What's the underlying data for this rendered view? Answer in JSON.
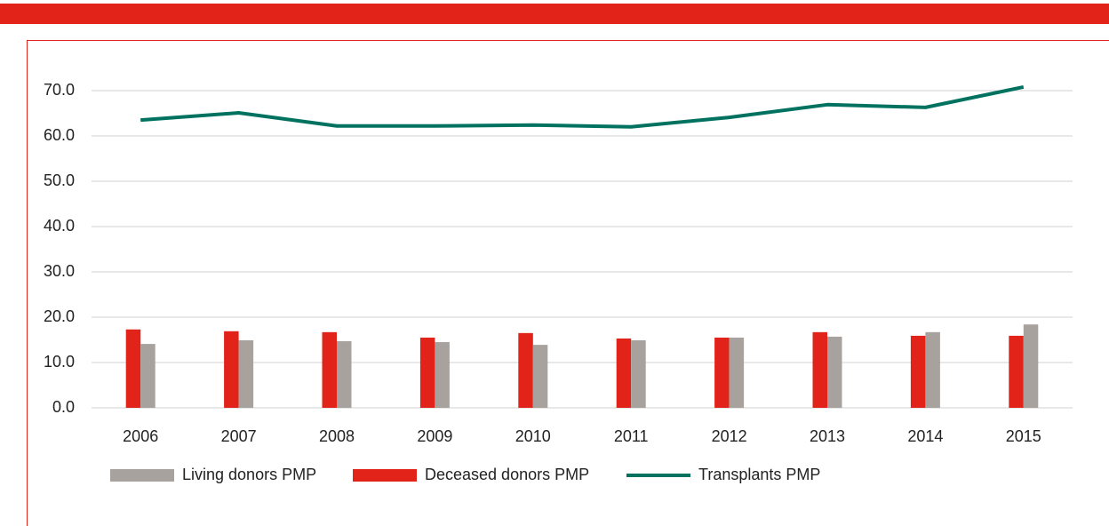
{
  "chart_data": {
    "type": "bar-line",
    "categories": [
      "2006",
      "2007",
      "2008",
      "2009",
      "2010",
      "2011",
      "2012",
      "2013",
      "2014",
      "2015"
    ],
    "series": [
      {
        "name": "Living donors PMP",
        "color": "#a8a29e",
        "type": "bar",
        "values": [
          14.1,
          14.9,
          14.7,
          14.5,
          13.9,
          14.9,
          15.5,
          15.7,
          16.7,
          18.4
        ]
      },
      {
        "name": "Deceased donors PMP",
        "color": "#e2231a",
        "type": "bar",
        "values": [
          17.3,
          16.9,
          16.7,
          15.5,
          16.5,
          15.3,
          15.5,
          16.7,
          15.9,
          15.9
        ]
      },
      {
        "name": "Transplants PMP",
        "color": "#00725f",
        "type": "line",
        "values": [
          63.5,
          65.1,
          62.2,
          62.2,
          62.4,
          62.0,
          64.1,
          66.9,
          66.3,
          70.8
        ]
      }
    ],
    "ylim": [
      0,
      70
    ],
    "yticks": [
      {
        "value": 0,
        "label": "0.0"
      },
      {
        "value": 10,
        "label": "10.0"
      },
      {
        "value": 20,
        "label": "20.0"
      },
      {
        "value": 30,
        "label": "30.0"
      },
      {
        "value": 40,
        "label": "40.0"
      },
      {
        "value": 50,
        "label": "50.0"
      },
      {
        "value": 60,
        "label": "60.0"
      },
      {
        "value": 70,
        "label": "70.0"
      }
    ],
    "grid": true
  }
}
